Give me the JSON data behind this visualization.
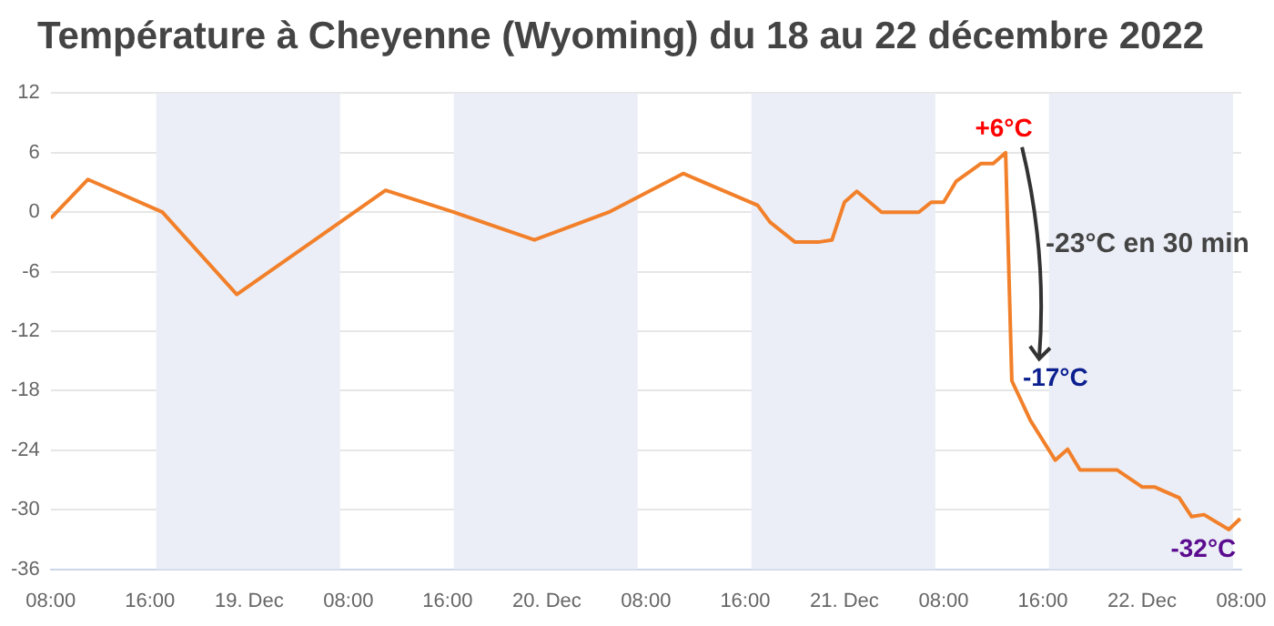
{
  "chart_data": {
    "type": "line",
    "title": "Température à Cheyenne (Wyoming) du 18 au 22 décembre 2022",
    "x": [
      "2022-12-18T08:00",
      "2022-12-18T11:00",
      "2022-12-18T17:00",
      "2022-12-18T23:00",
      "2022-12-19T11:00",
      "2022-12-19T16:30",
      "2022-12-19T23:00",
      "2022-12-20T05:00",
      "2022-12-20T11:00",
      "2022-12-20T17:00",
      "2022-12-20T18:00",
      "2022-12-20T20:00",
      "2022-12-20T22:00",
      "2022-12-20T23:00",
      "2022-12-21T00:00",
      "2022-12-21T01:00",
      "2022-12-21T03:00",
      "2022-12-21T06:00",
      "2022-12-21T07:00",
      "2022-12-21T08:00",
      "2022-12-21T09:00",
      "2022-12-21T11:00",
      "2022-12-21T12:00",
      "2022-12-21T13:00",
      "2022-12-21T13:30",
      "2022-12-21T15:00",
      "2022-12-21T17:00",
      "2022-12-21T18:00",
      "2022-12-21T19:00",
      "2022-12-21T22:00",
      "2022-12-22T00:00",
      "2022-12-22T01:00",
      "2022-12-22T03:00",
      "2022-12-22T04:00",
      "2022-12-22T05:00",
      "2022-12-22T07:00",
      "2022-12-22T07:55"
    ],
    "series": [
      {
        "color": "#f2802a",
        "values": [
          -0.6,
          3.3,
          0,
          -8.3,
          2.2,
          0,
          -2.8,
          0,
          3.9,
          0.7,
          -1,
          -3,
          -3,
          -2.8,
          1,
          2.1,
          0,
          0,
          1,
          1,
          3.1,
          4.9,
          4.9,
          6,
          -17,
          -21,
          -25,
          -23.9,
          -26,
          -26,
          -27.7,
          -27.7,
          -28.8,
          -30.7,
          -30.5,
          -32,
          -30.9
        ]
      }
    ],
    "xlim": [
      "2022-12-18T08:00",
      "2022-12-22T08:00"
    ],
    "xticks": [
      {
        "value": "2022-12-18T08:00",
        "label": "08:00"
      },
      {
        "value": "2022-12-18T16:00",
        "label": "16:00"
      },
      {
        "value": "2022-12-19T00:00",
        "label": "19. Dec"
      },
      {
        "value": "2022-12-19T08:00",
        "label": "08:00"
      },
      {
        "value": "2022-12-19T16:00",
        "label": "16:00"
      },
      {
        "value": "2022-12-20T00:00",
        "label": "20. Dec"
      },
      {
        "value": "2022-12-20T08:00",
        "label": "08:00"
      },
      {
        "value": "2022-12-20T16:00",
        "label": "16:00"
      },
      {
        "value": "2022-12-21T00:00",
        "label": "21. Dec"
      },
      {
        "value": "2022-12-21T08:00",
        "label": "08:00"
      },
      {
        "value": "2022-12-21T16:00",
        "label": "16:00"
      },
      {
        "value": "2022-12-22T00:00",
        "label": "22. Dec"
      },
      {
        "value": "2022-12-22T08:00",
        "label": "08:00"
      }
    ],
    "ylim": [
      -36,
      12
    ],
    "yticks": [
      -36,
      -30,
      -24,
      -18,
      -12,
      -6,
      0,
      6,
      12
    ],
    "bands": [
      {
        "axis": "x",
        "from": "2022-12-18T16:30",
        "to": "2022-12-19T07:20",
        "color": "#ebeef6"
      },
      {
        "axis": "x",
        "from": "2022-12-19T16:30",
        "to": "2022-12-20T07:20",
        "color": "#ebeef6"
      },
      {
        "axis": "x",
        "from": "2022-12-20T16:30",
        "to": "2022-12-21T07:20",
        "color": "#ebeef6"
      },
      {
        "axis": "x",
        "from": "2022-12-21T16:30",
        "to": "2022-12-22T07:20",
        "color": "#ebeef6"
      }
    ],
    "annotations": [
      {
        "text": "+6°C",
        "x": "2022-12-21T13:00",
        "y": 6
      },
      {
        "text": "-17°C",
        "x": "2022-12-21T13:30",
        "y": -17
      },
      {
        "text": "-32°C",
        "x": "2022-12-22T07:00",
        "y": -32
      },
      "-23°C en 30 min"
    ],
    "grid": "y",
    "legend": false,
    "marker": "none",
    "line_style": "solid"
  }
}
